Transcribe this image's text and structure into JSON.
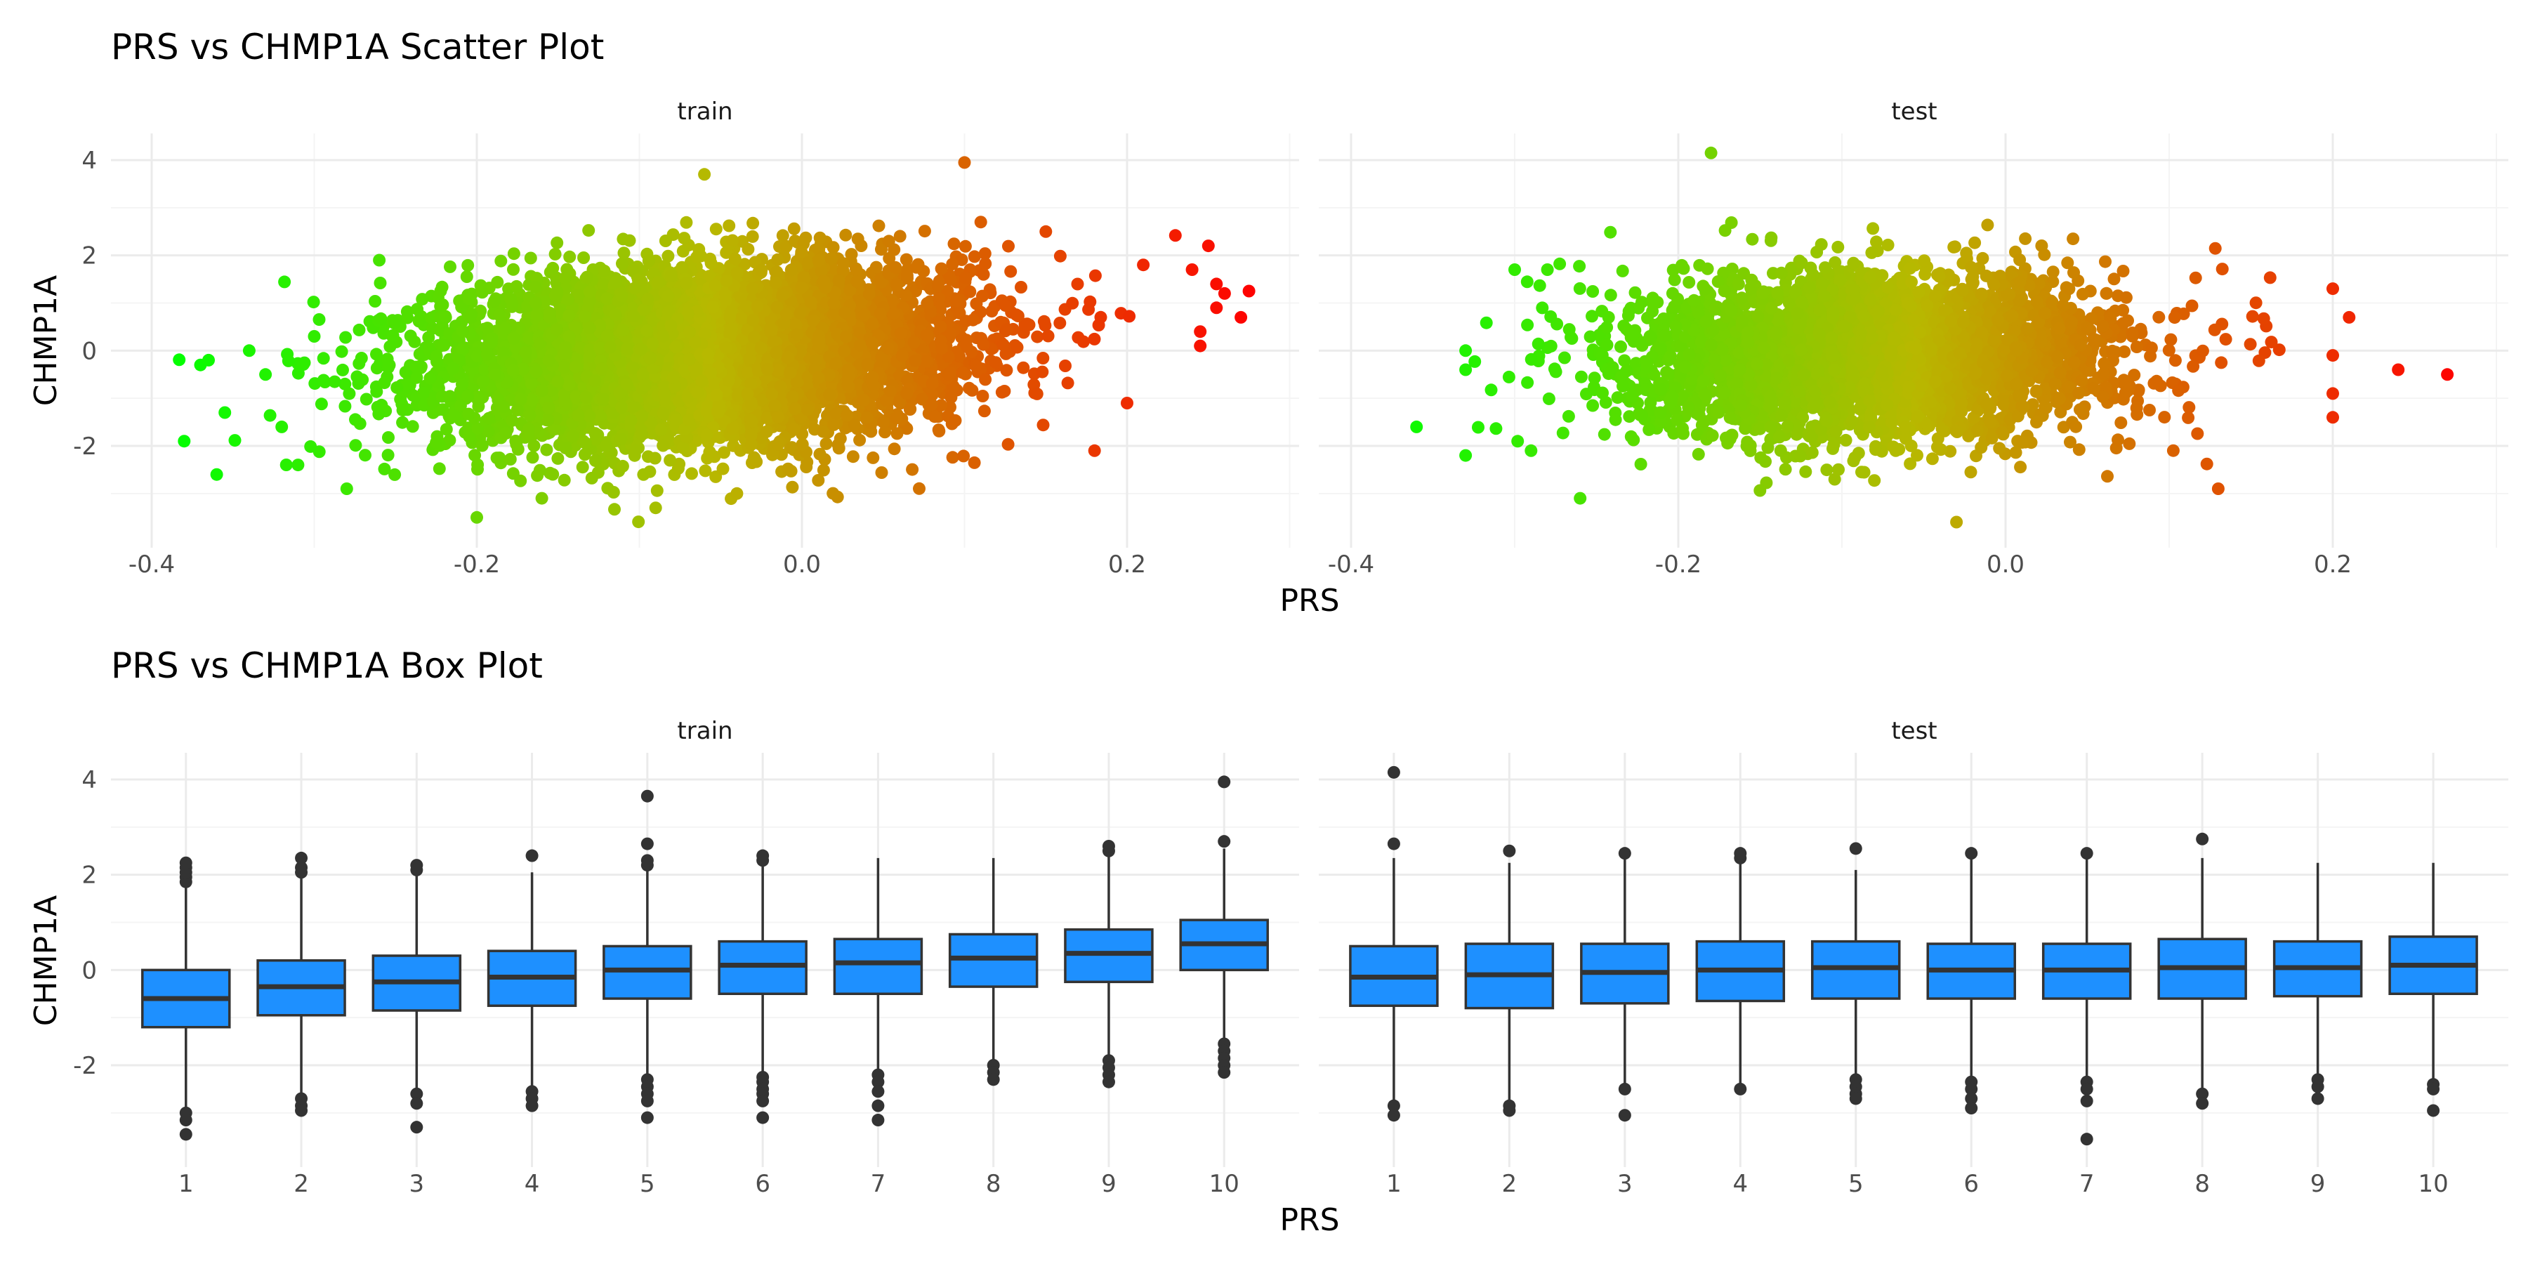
{
  "chart_data": [
    {
      "type": "scatter",
      "title": "PRS vs CHMP1A Scatter Plot",
      "xlabel": "PRS",
      "ylabel": "CHMP1A",
      "facets": [
        "train",
        "test"
      ],
      "xlim": [
        -0.42,
        0.3
      ],
      "ylim": [
        -4.0,
        4.5
      ],
      "x_ticks": [
        -0.4,
        -0.2,
        0.0,
        0.2
      ],
      "x_tick_labels": [
        "-0.4",
        "-0.2",
        "0.0",
        "0.2"
      ],
      "y_ticks": [
        -2,
        0,
        2,
        4
      ],
      "y_tick_labels": [
        "-2",
        "0",
        "2",
        "4"
      ],
      "grid": true,
      "legend": "none",
      "color_gradient": {
        "low": "#00ff00",
        "mid": "#b8b800",
        "high": "#ff0000",
        "mapped_to": "PRS"
      },
      "panels": {
        "train": {
          "bulk": {
            "x_center": -0.06,
            "x_sd": 0.08,
            "y_center": -0.05,
            "y_sd": 0.9,
            "slope": 3.5,
            "n": 6000
          },
          "points": [
            {
              "x": -0.38,
              "y": -1.9
            },
            {
              "x": -0.36,
              "y": -2.6
            },
            {
              "x": -0.37,
              "y": -0.3
            },
            {
              "x": -0.365,
              "y": -0.2
            },
            {
              "x": -0.355,
              "y": -1.3
            },
            {
              "x": -0.34,
              "y": 0.0
            },
            {
              "x": -0.33,
              "y": -0.5
            },
            {
              "x": -0.32,
              "y": -1.6
            },
            {
              "x": -0.31,
              "y": -2.4
            },
            {
              "x": -0.3,
              "y": 0.3
            },
            {
              "x": -0.28,
              "y": -2.9
            },
            {
              "x": -0.26,
              "y": 1.9
            },
            {
              "x": -0.2,
              "y": -3.5
            },
            {
              "x": -0.16,
              "y": -3.1
            },
            {
              "x": -0.09,
              "y": -3.3
            },
            {
              "x": -0.06,
              "y": 3.7
            },
            {
              "x": -0.04,
              "y": -3.0
            },
            {
              "x": 0.1,
              "y": 3.95
            },
            {
              "x": 0.11,
              "y": 2.7
            },
            {
              "x": 0.15,
              "y": 2.5
            },
            {
              "x": 0.18,
              "y": -2.1
            },
            {
              "x": 0.2,
              "y": -1.1
            },
            {
              "x": 0.21,
              "y": 1.8
            },
            {
              "x": 0.24,
              "y": 1.7
            },
            {
              "x": 0.245,
              "y": 0.4
            },
            {
              "x": 0.25,
              "y": 2.2
            },
            {
              "x": 0.255,
              "y": 1.4
            },
            {
              "x": 0.26,
              "y": 1.2
            },
            {
              "x": 0.255,
              "y": 0.9
            },
            {
              "x": 0.27,
              "y": 0.7
            },
            {
              "x": 0.275,
              "y": 1.25
            },
            {
              "x": 0.245,
              "y": 0.1
            }
          ]
        },
        "test": {
          "bulk": {
            "x_center": -0.08,
            "x_sd": 0.075,
            "y_center": -0.1,
            "y_sd": 0.85,
            "slope": 1.5,
            "n": 3500
          },
          "points": [
            {
              "x": -0.36,
              "y": -1.6
            },
            {
              "x": -0.33,
              "y": -2.2
            },
            {
              "x": -0.33,
              "y": 0.0
            },
            {
              "x": -0.33,
              "y": -0.4
            },
            {
              "x": -0.3,
              "y": 1.7
            },
            {
              "x": -0.28,
              "y": 1.7
            },
            {
              "x": -0.29,
              "y": -2.1
            },
            {
              "x": -0.26,
              "y": -3.1
            },
            {
              "x": -0.18,
              "y": 4.15
            },
            {
              "x": -0.03,
              "y": -3.6
            },
            {
              "x": 0.13,
              "y": -2.9
            },
            {
              "x": 0.2,
              "y": 1.3
            },
            {
              "x": 0.2,
              "y": -1.4
            },
            {
              "x": 0.2,
              "y": -0.1
            },
            {
              "x": 0.21,
              "y": 0.7
            },
            {
              "x": 0.2,
              "y": -0.9
            },
            {
              "x": 0.24,
              "y": -0.4
            },
            {
              "x": 0.27,
              "y": -0.5
            }
          ]
        }
      }
    },
    {
      "type": "box",
      "title": "PRS vs CHMP1A Box Plot",
      "xlabel": "PRS",
      "ylabel": "CHMP1A",
      "facets": [
        "train",
        "test"
      ],
      "categories": [
        "1",
        "2",
        "3",
        "4",
        "5",
        "6",
        "7",
        "8",
        "9",
        "10"
      ],
      "ylim": [
        -4.0,
        4.5
      ],
      "y_ticks": [
        -2,
        0,
        2,
        4
      ],
      "y_tick_labels": [
        "-2",
        "0",
        "2",
        "4"
      ],
      "grid": true,
      "fill_color": "#1e90ff",
      "line_color": "#333333",
      "panels": {
        "train": [
          {
            "q1": -1.2,
            "median": -0.6,
            "q3": 0.0,
            "whisker_low": -2.95,
            "whisker_high": 1.8,
            "outliers": [
              -3.0,
              -3.15,
              -3.45,
              1.85,
              1.95,
              2.05,
              2.15,
              2.25
            ]
          },
          {
            "q1": -0.95,
            "median": -0.35,
            "q3": 0.2,
            "whisker_low": -2.65,
            "whisker_high": 2.0,
            "outliers": [
              -2.7,
              -2.85,
              -2.95,
              2.05,
              2.15,
              2.35
            ]
          },
          {
            "q1": -0.85,
            "median": -0.25,
            "q3": 0.3,
            "whisker_low": -2.55,
            "whisker_high": 2.05,
            "outliers": [
              -2.6,
              -2.8,
              -3.3,
              2.1,
              2.2
            ]
          },
          {
            "q1": -0.75,
            "median": -0.15,
            "q3": 0.4,
            "whisker_low": -2.45,
            "whisker_high": 2.05,
            "outliers": [
              -2.55,
              -2.7,
              -2.85,
              2.4
            ]
          },
          {
            "q1": -0.6,
            "median": 0.0,
            "q3": 0.5,
            "whisker_low": -2.2,
            "whisker_high": 2.15,
            "outliers": [
              -2.3,
              -2.45,
              -2.6,
              -2.75,
              -3.1,
              2.2,
              2.3,
              2.65,
              3.65
            ]
          },
          {
            "q1": -0.5,
            "median": 0.1,
            "q3": 0.6,
            "whisker_low": -2.15,
            "whisker_high": 2.25,
            "outliers": [
              -2.25,
              -2.35,
              -2.5,
              -2.6,
              -2.75,
              -3.1,
              2.3,
              2.4
            ]
          },
          {
            "q1": -0.5,
            "median": 0.15,
            "q3": 0.65,
            "whisker_low": -2.1,
            "whisker_high": 2.35,
            "outliers": [
              -2.2,
              -2.35,
              -2.55,
              -2.85,
              -3.15
            ]
          },
          {
            "q1": -0.35,
            "median": 0.25,
            "q3": 0.75,
            "whisker_low": -1.95,
            "whisker_high": 2.35,
            "outliers": [
              -2.0,
              -2.15,
              -2.3
            ]
          },
          {
            "q1": -0.25,
            "median": 0.35,
            "q3": 0.85,
            "whisker_low": -1.85,
            "whisker_high": 2.45,
            "outliers": [
              -1.9,
              -2.05,
              -2.2,
              -2.35,
              2.5,
              2.6
            ]
          },
          {
            "q1": 0.0,
            "median": 0.55,
            "q3": 1.05,
            "whisker_low": -1.5,
            "whisker_high": 2.55,
            "outliers": [
              -1.55,
              -1.7,
              -1.85,
              -2.0,
              -2.15,
              2.7,
              3.95
            ]
          }
        ],
        "test": [
          {
            "q1": -0.75,
            "median": -0.15,
            "q3": 0.5,
            "whisker_low": -2.8,
            "whisker_high": 2.35,
            "outliers": [
              -2.85,
              -3.05,
              2.65,
              4.15
            ]
          },
          {
            "q1": -0.8,
            "median": -0.1,
            "q3": 0.55,
            "whisker_low": -2.8,
            "whisker_high": 2.25,
            "outliers": [
              -2.85,
              -2.95,
              2.5
            ]
          },
          {
            "q1": -0.7,
            "median": -0.05,
            "q3": 0.55,
            "whisker_low": -2.45,
            "whisker_high": 2.4,
            "outliers": [
              -2.5,
              -3.05,
              2.45
            ]
          },
          {
            "q1": -0.65,
            "median": 0.0,
            "q3": 0.6,
            "whisker_low": -2.45,
            "whisker_high": 2.3,
            "outliers": [
              -2.5,
              2.35,
              2.45
            ]
          },
          {
            "q1": -0.6,
            "median": 0.05,
            "q3": 0.6,
            "whisker_low": -2.25,
            "whisker_high": 2.1,
            "outliers": [
              -2.3,
              -2.45,
              -2.6,
              -2.7,
              2.55
            ]
          },
          {
            "q1": -0.6,
            "median": 0.0,
            "q3": 0.55,
            "whisker_low": -2.3,
            "whisker_high": 2.4,
            "outliers": [
              -2.35,
              -2.5,
              -2.7,
              -2.9,
              2.45
            ]
          },
          {
            "q1": -0.6,
            "median": 0.0,
            "q3": 0.55,
            "whisker_low": -2.3,
            "whisker_high": 2.4,
            "outliers": [
              -2.35,
              -2.5,
              -2.75,
              -3.55,
              2.45
            ]
          },
          {
            "q1": -0.6,
            "median": 0.05,
            "q3": 0.65,
            "whisker_low": -2.55,
            "whisker_high": 2.35,
            "outliers": [
              -2.6,
              -2.8,
              2.75
            ]
          },
          {
            "q1": -0.55,
            "median": 0.05,
            "q3": 0.6,
            "whisker_low": -2.25,
            "whisker_high": 2.25,
            "outliers": [
              -2.3,
              -2.45,
              -2.7
            ]
          },
          {
            "q1": -0.5,
            "median": 0.1,
            "q3": 0.7,
            "whisker_low": -2.35,
            "whisker_high": 2.25,
            "outliers": [
              -2.4,
              -2.5,
              -2.95
            ]
          }
        ]
      }
    }
  ]
}
